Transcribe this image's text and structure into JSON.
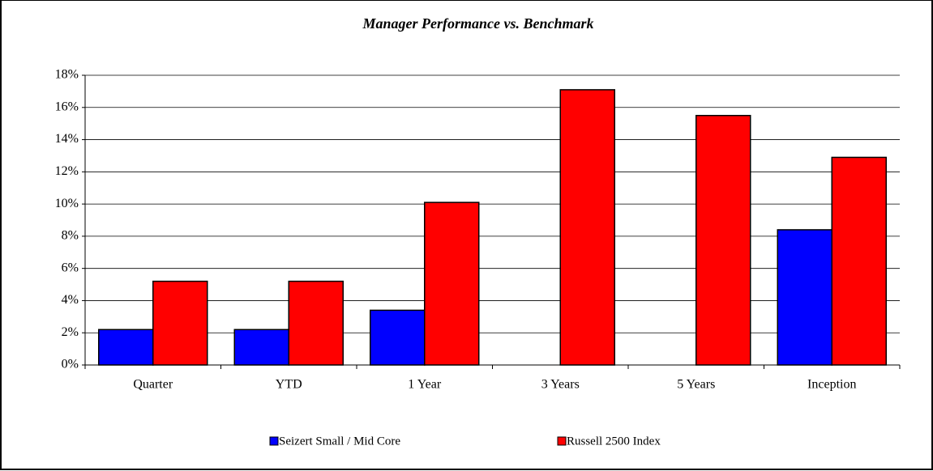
{
  "chart_data": {
    "type": "bar",
    "title": "Manager Performance vs. Benchmark",
    "categories": [
      "Quarter",
      "YTD",
      "1 Year",
      "3 Years",
      "5 Years",
      "Inception"
    ],
    "series": [
      {
        "name": "Seizert Small / Mid Core",
        "color": "#0000ff",
        "values": [
          2.2,
          2.2,
          3.4,
          null,
          null,
          8.4
        ]
      },
      {
        "name": "Russell 2500 Index",
        "color": "#ff0000",
        "values": [
          5.2,
          5.2,
          10.1,
          17.1,
          15.5,
          12.9
        ]
      }
    ],
    "ylim": [
      0,
      18
    ],
    "yticks": [
      {
        "value": 0,
        "label": "0%"
      },
      {
        "value": 2,
        "label": "2%"
      },
      {
        "value": 4,
        "label": "4%"
      },
      {
        "value": 6,
        "label": "6%"
      },
      {
        "value": 8,
        "label": "8%"
      },
      {
        "value": 10,
        "label": "10%"
      },
      {
        "value": 12,
        "label": "12%"
      },
      {
        "value": 14,
        "label": "14%"
      },
      {
        "value": 16,
        "label": "16%"
      },
      {
        "value": 18,
        "label": "18%"
      }
    ],
    "grid": true,
    "legend": "bottom"
  }
}
